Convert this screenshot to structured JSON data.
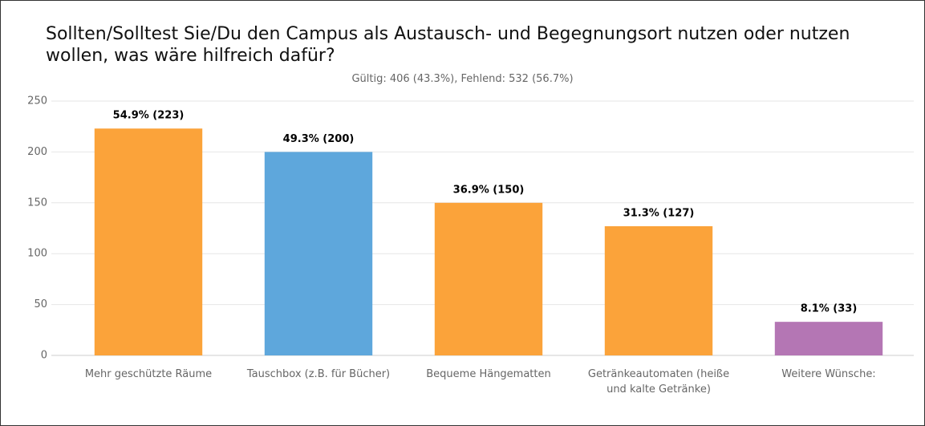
{
  "chart_data": {
    "type": "bar",
    "title": "Sollten/Solltest Sie/Du den Campus als Austausch- und Begegnungsort nutzen oder nutzen wollen, was wäre hilfreich dafür?",
    "subtitle": "Gültig: 406 (43.3%), Fehlend: 532 (56.7%)",
    "categories": [
      "Mehr geschützte Räume",
      "Tauschbox (z.B. für Bücher)",
      "Bequeme Hängematten",
      "Getränkeautomaten (heiße und kalte Getränke)",
      "Weitere Wünsche:"
    ],
    "values": [
      223,
      200,
      150,
      127,
      33
    ],
    "value_labels": [
      "54.9% (223)",
      "49.3% (200)",
      "36.9% (150)",
      "31.3% (127)",
      "8.1% (33)"
    ],
    "colors": [
      "#fba33a",
      "#5ea7dc",
      "#fba33a",
      "#fba33a",
      "#b476b4"
    ],
    "ylim": [
      0,
      250
    ],
    "yticks": [
      0,
      50,
      100,
      150,
      200,
      250
    ],
    "grid": true
  }
}
